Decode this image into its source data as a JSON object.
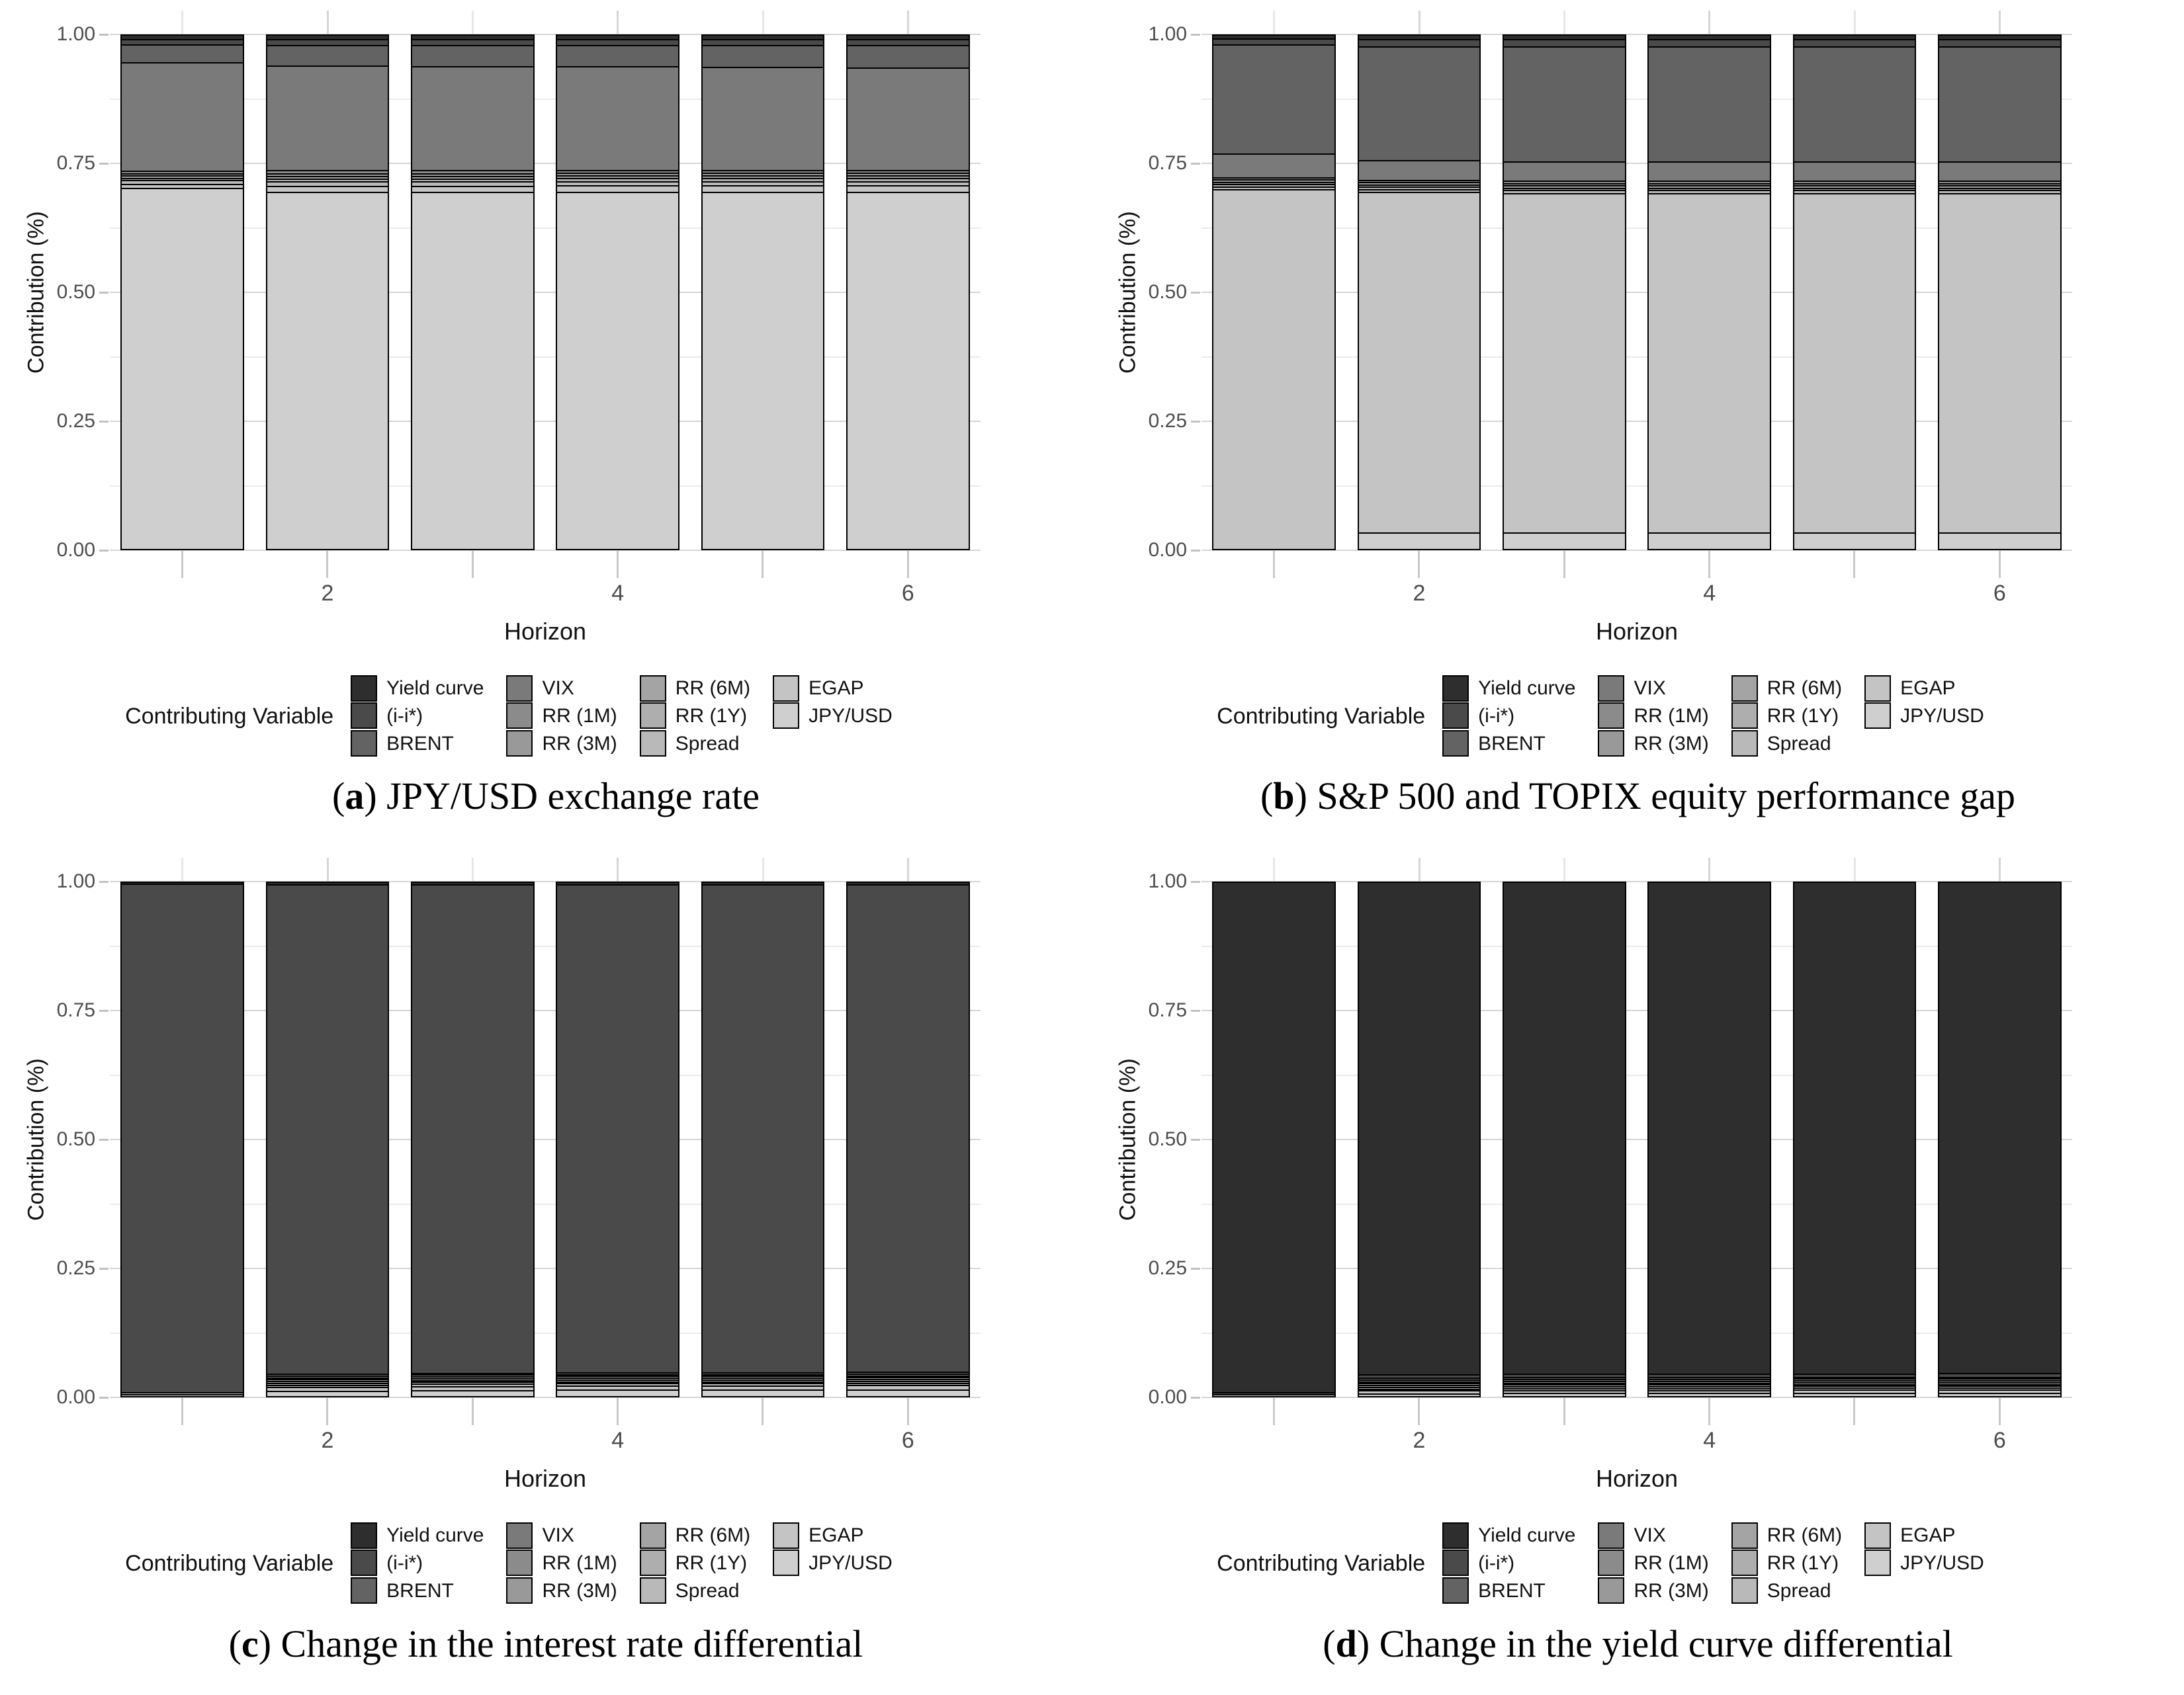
{
  "axes": {
    "ylabel": "Contribution (%)",
    "xlabel": "Horizon",
    "y_ticks": [
      "1.00",
      "0.75",
      "0.50",
      "0.25",
      "0.00"
    ],
    "y_range": [
      0,
      1
    ],
    "x_tick_labels": [
      "2",
      "4",
      "6"
    ],
    "x_tick_positions": [
      2,
      4,
      6
    ],
    "grid": "major and minor horizontal lines, vertical lines at bar centers"
  },
  "legend": {
    "title": "Contributing Variable",
    "entries": [
      {
        "label": "Yield curve",
        "color": "#2e2e2e"
      },
      {
        "label": "(i-i*)",
        "color": "#4a4a4a"
      },
      {
        "label": "BRENT",
        "color": "#636363"
      },
      {
        "label": "VIX",
        "color": "#7a7a7a"
      },
      {
        "label": "RR (1M)",
        "color": "#8b8b8b"
      },
      {
        "label": "RR (3M)",
        "color": "#999999"
      },
      {
        "label": "RR (6M)",
        "color": "#a4a4a4"
      },
      {
        "label": "RR (1Y)",
        "color": "#aeaeae"
      },
      {
        "label": "Spread",
        "color": "#b9b9b9"
      },
      {
        "label": "EGAP",
        "color": "#c4c4c4"
      },
      {
        "label": "JPY/USD",
        "color": "#cfcfcf"
      }
    ],
    "columns": [
      [
        "Yield curve",
        "(i-i*)",
        "BRENT"
      ],
      [
        "VIX",
        "RR (1M)",
        "RR (3M)"
      ],
      [
        "RR (6M)",
        "RR (1Y)",
        "Spread"
      ],
      [
        "EGAP",
        "JPY/USD"
      ]
    ]
  },
  "chart_data": [
    {
      "id": "a",
      "caption_letter": "a",
      "caption_text": "JPY/USD exchange rate",
      "type": "bar",
      "stacked": true,
      "stack_order": "first series at top of bar",
      "categories": [
        1,
        2,
        3,
        4,
        5,
        6
      ],
      "xlabel": "Horizon",
      "ylabel": "Contribution (%)",
      "ylim": [
        0,
        1
      ],
      "series": [
        {
          "name": "Yield curve",
          "values": [
            0.006,
            0.007,
            0.007,
            0.007,
            0.007,
            0.007
          ]
        },
        {
          "name": "(i-i*)",
          "values": [
            0.008,
            0.009,
            0.009,
            0.009,
            0.009,
            0.009
          ]
        },
        {
          "name": "BRENT",
          "values": [
            0.033,
            0.038,
            0.04,
            0.04,
            0.041,
            0.042
          ]
        },
        {
          "name": "VIX",
          "values": [
            0.215,
            0.207,
            0.205,
            0.204,
            0.203,
            0.202
          ]
        },
        {
          "name": "RR (1M)",
          "values": [
            0.002,
            0.003,
            0.003,
            0.003,
            0.003,
            0.003
          ]
        },
        {
          "name": "RR (3M)",
          "values": [
            0.002,
            0.003,
            0.003,
            0.003,
            0.003,
            0.003
          ]
        },
        {
          "name": "RR (6M)",
          "values": [
            0.002,
            0.003,
            0.003,
            0.003,
            0.003,
            0.003
          ]
        },
        {
          "name": "RR (1Y)",
          "values": [
            0.002,
            0.003,
            0.003,
            0.003,
            0.003,
            0.003
          ]
        },
        {
          "name": "Spread",
          "values": [
            0.005,
            0.006,
            0.006,
            0.006,
            0.006,
            0.006
          ]
        },
        {
          "name": "EGAP",
          "values": [
            0.005,
            0.009,
            0.009,
            0.01,
            0.01,
            0.01
          ]
        },
        {
          "name": "JPY/USD",
          "values": [
            0.72,
            0.712,
            0.712,
            0.712,
            0.712,
            0.712
          ]
        }
      ]
    },
    {
      "id": "b",
      "caption_letter": "b",
      "caption_text": "S&P 500 and TOPIX equity performance gap",
      "type": "bar",
      "stacked": true,
      "stack_order": "first series at top of bar",
      "categories": [
        1,
        2,
        3,
        4,
        5,
        6
      ],
      "xlabel": "Horizon",
      "ylabel": "Contribution (%)",
      "ylim": [
        0,
        1
      ],
      "series": [
        {
          "name": "Yield curve",
          "values": [
            0.005,
            0.006,
            0.006,
            0.006,
            0.006,
            0.006
          ]
        },
        {
          "name": "(i-i*)",
          "values": [
            0.009,
            0.012,
            0.012,
            0.012,
            0.012,
            0.012
          ]
        },
        {
          "name": "BRENT",
          "values": [
            0.215,
            0.225,
            0.228,
            0.228,
            0.228,
            0.228
          ]
        },
        {
          "name": "VIX",
          "values": [
            0.045,
            0.037,
            0.036,
            0.036,
            0.036,
            0.036
          ]
        },
        {
          "name": "RR (1M)",
          "values": [
            0.002,
            0.002,
            0.002,
            0.002,
            0.002,
            0.002
          ]
        },
        {
          "name": "RR (3M)",
          "values": [
            0.002,
            0.002,
            0.002,
            0.002,
            0.002,
            0.002
          ]
        },
        {
          "name": "RR (6M)",
          "values": [
            0.002,
            0.002,
            0.002,
            0.002,
            0.002,
            0.002
          ]
        },
        {
          "name": "RR (1Y)",
          "values": [
            0.002,
            0.002,
            0.002,
            0.002,
            0.002,
            0.002
          ]
        },
        {
          "name": "Spread",
          "values": [
            0.003,
            0.003,
            0.003,
            0.003,
            0.003,
            0.003
          ]
        },
        {
          "name": "EGAP",
          "values": [
            0.715,
            0.679,
            0.677,
            0.677,
            0.677,
            0.677
          ]
        },
        {
          "name": "JPY/USD",
          "values": [
            0.0,
            0.03,
            0.03,
            0.03,
            0.03,
            0.03
          ]
        }
      ]
    },
    {
      "id": "c",
      "caption_letter": "c",
      "caption_text": "Change in the interest rate differential",
      "type": "bar",
      "stacked": true,
      "stack_order": "first series at top of bar",
      "categories": [
        1,
        2,
        3,
        4,
        5,
        6
      ],
      "xlabel": "Horizon",
      "ylabel": "Contribution (%)",
      "ylim": [
        0,
        1
      ],
      "series": [
        {
          "name": "Yield curve",
          "values": [
            0.001,
            0.003,
            0.003,
            0.003,
            0.003,
            0.003
          ]
        },
        {
          "name": "(i-i*)",
          "values": [
            0.997,
            0.976,
            0.974,
            0.973,
            0.973,
            0.972
          ]
        },
        {
          "name": "BRENT",
          "values": [
            0.0,
            0.001,
            0.001,
            0.001,
            0.001,
            0.001
          ]
        },
        {
          "name": "VIX",
          "values": [
            0.0,
            0.001,
            0.001,
            0.001,
            0.001,
            0.001
          ]
        },
        {
          "name": "RR (1M)",
          "values": [
            0.0,
            0.001,
            0.001,
            0.001,
            0.001,
            0.001
          ]
        },
        {
          "name": "RR (3M)",
          "values": [
            0.0,
            0.001,
            0.001,
            0.001,
            0.001,
            0.001
          ]
        },
        {
          "name": "RR (6M)",
          "values": [
            0.0,
            0.001,
            0.001,
            0.001,
            0.001,
            0.001
          ]
        },
        {
          "name": "RR (1Y)",
          "values": [
            0.0,
            0.001,
            0.001,
            0.001,
            0.001,
            0.001
          ]
        },
        {
          "name": "Spread",
          "values": [
            0.001,
            0.002,
            0.002,
            0.002,
            0.002,
            0.002
          ]
        },
        {
          "name": "EGAP",
          "values": [
            0.0,
            0.005,
            0.006,
            0.006,
            0.006,
            0.007
          ]
        },
        {
          "name": "JPY/USD",
          "values": [
            0.001,
            0.008,
            0.009,
            0.01,
            0.01,
            0.01
          ]
        }
      ]
    },
    {
      "id": "d",
      "caption_letter": "d",
      "caption_text": "Change in the yield curve differential",
      "type": "bar",
      "stacked": true,
      "stack_order": "first series at top of bar",
      "categories": [
        1,
        2,
        3,
        4,
        5,
        6
      ],
      "xlabel": "Horizon",
      "ylabel": "Contribution (%)",
      "ylim": [
        0,
        1
      ],
      "series": [
        {
          "name": "Yield curve",
          "values": [
            0.998,
            0.983,
            0.982,
            0.982,
            0.981,
            0.98
          ]
        },
        {
          "name": "(i-i*)",
          "values": [
            0.001,
            0.004,
            0.004,
            0.004,
            0.004,
            0.005
          ]
        },
        {
          "name": "BRENT",
          "values": [
            0.0,
            0.001,
            0.001,
            0.001,
            0.001,
            0.001
          ]
        },
        {
          "name": "VIX",
          "values": [
            0.0,
            0.001,
            0.001,
            0.001,
            0.001,
            0.001
          ]
        },
        {
          "name": "RR (1M)",
          "values": [
            0.0,
            0.001,
            0.001,
            0.001,
            0.001,
            0.001
          ]
        },
        {
          "name": "RR (3M)",
          "values": [
            0.0,
            0.001,
            0.001,
            0.001,
            0.001,
            0.001
          ]
        },
        {
          "name": "RR (6M)",
          "values": [
            0.0,
            0.001,
            0.001,
            0.001,
            0.001,
            0.001
          ]
        },
        {
          "name": "RR (1Y)",
          "values": [
            0.0,
            0.001,
            0.001,
            0.001,
            0.001,
            0.001
          ]
        },
        {
          "name": "Spread",
          "values": [
            0.0,
            0.001,
            0.001,
            0.001,
            0.001,
            0.001
          ]
        },
        {
          "name": "EGAP",
          "values": [
            0.0,
            0.003,
            0.003,
            0.003,
            0.004,
            0.004
          ]
        },
        {
          "name": "JPY/USD",
          "values": [
            0.001,
            0.003,
            0.004,
            0.004,
            0.004,
            0.004
          ]
        }
      ]
    }
  ],
  "grid_colors": {
    "major": "#d6d6d6",
    "minor": "#ebebeb",
    "tick": "#c9c9c9",
    "axis_text": "#4d4d4d"
  }
}
